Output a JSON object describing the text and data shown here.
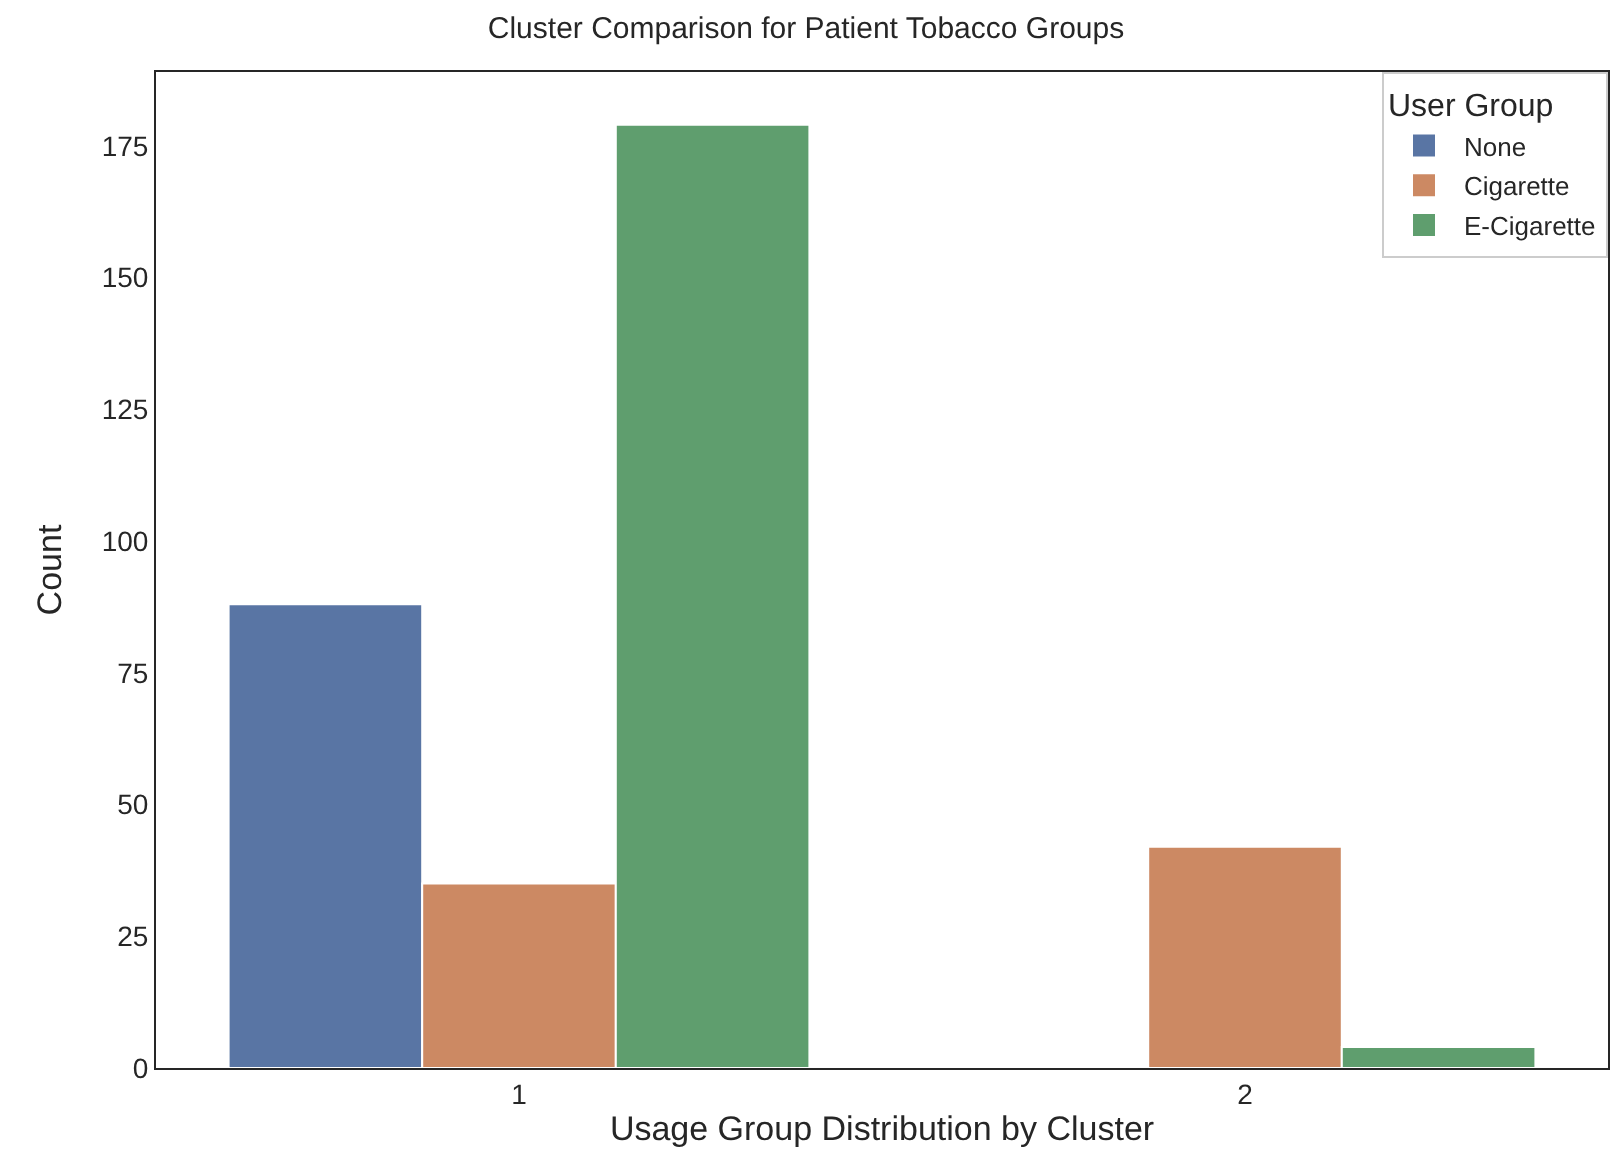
{
  "chart_data": {
    "type": "bar",
    "title": "Cluster Comparison for Patient Tobacco Groups",
    "xlabel": "Usage Group Distribution by Cluster",
    "ylabel": "Count",
    "legend_title": "User Group",
    "categories": [
      "1",
      "2"
    ],
    "series": [
      {
        "name": "None",
        "color": "#5975a4",
        "values": [
          88,
          null
        ]
      },
      {
        "name": "Cigarette",
        "color": "#cc8963",
        "values": [
          35,
          42
        ]
      },
      {
        "name": "E-Cigarette",
        "color": "#5f9e6e",
        "values": [
          179,
          4
        ]
      }
    ],
    "ylim": [
      0,
      189
    ],
    "yticks": [
      0,
      25,
      50,
      75,
      100,
      125,
      150,
      175
    ],
    "legend": "top right"
  }
}
